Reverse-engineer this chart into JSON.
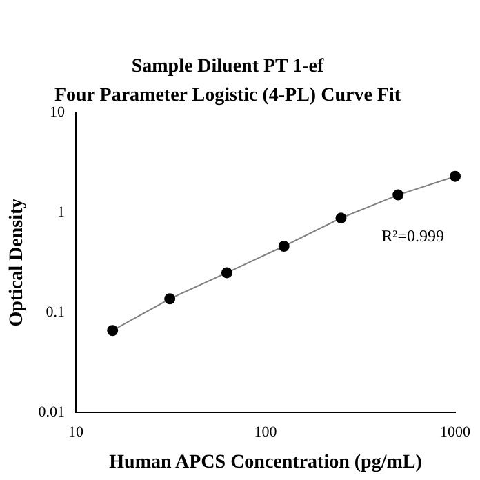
{
  "chart_data": {
    "type": "scatter",
    "title": "Sample Diluent PT 1-ef",
    "subtitle": "Four Parameter Logistic (4-PL) Curve Fit",
    "xlabel": "Human APCS Concentration (pg/mL)",
    "ylabel": "Optical Density",
    "log": "xy",
    "xlim": [
      10,
      1000
    ],
    "ylim": [
      0.01,
      10
    ],
    "xticks": [
      10,
      100,
      1000
    ],
    "yticks": [
      0.01,
      0.1,
      1,
      10
    ],
    "grid": false,
    "legend": false,
    "annotations": [
      "R²=0.999"
    ],
    "series": [
      {
        "type": "line",
        "color": "#808080",
        "marker": "none",
        "x": [
          15.6,
          31.25,
          62.5,
          125,
          250,
          500,
          1000
        ],
        "values": [
          0.066,
          0.137,
          0.25,
          0.46,
          0.88,
          1.5,
          2.3
        ]
      },
      {
        "type": "scatter",
        "color": "#000000",
        "marker": "circle",
        "x": [
          15.6,
          31.25,
          62.5,
          125,
          250,
          500,
          1000
        ],
        "values": [
          0.066,
          0.137,
          0.25,
          0.46,
          0.88,
          1.5,
          2.3
        ]
      }
    ]
  }
}
